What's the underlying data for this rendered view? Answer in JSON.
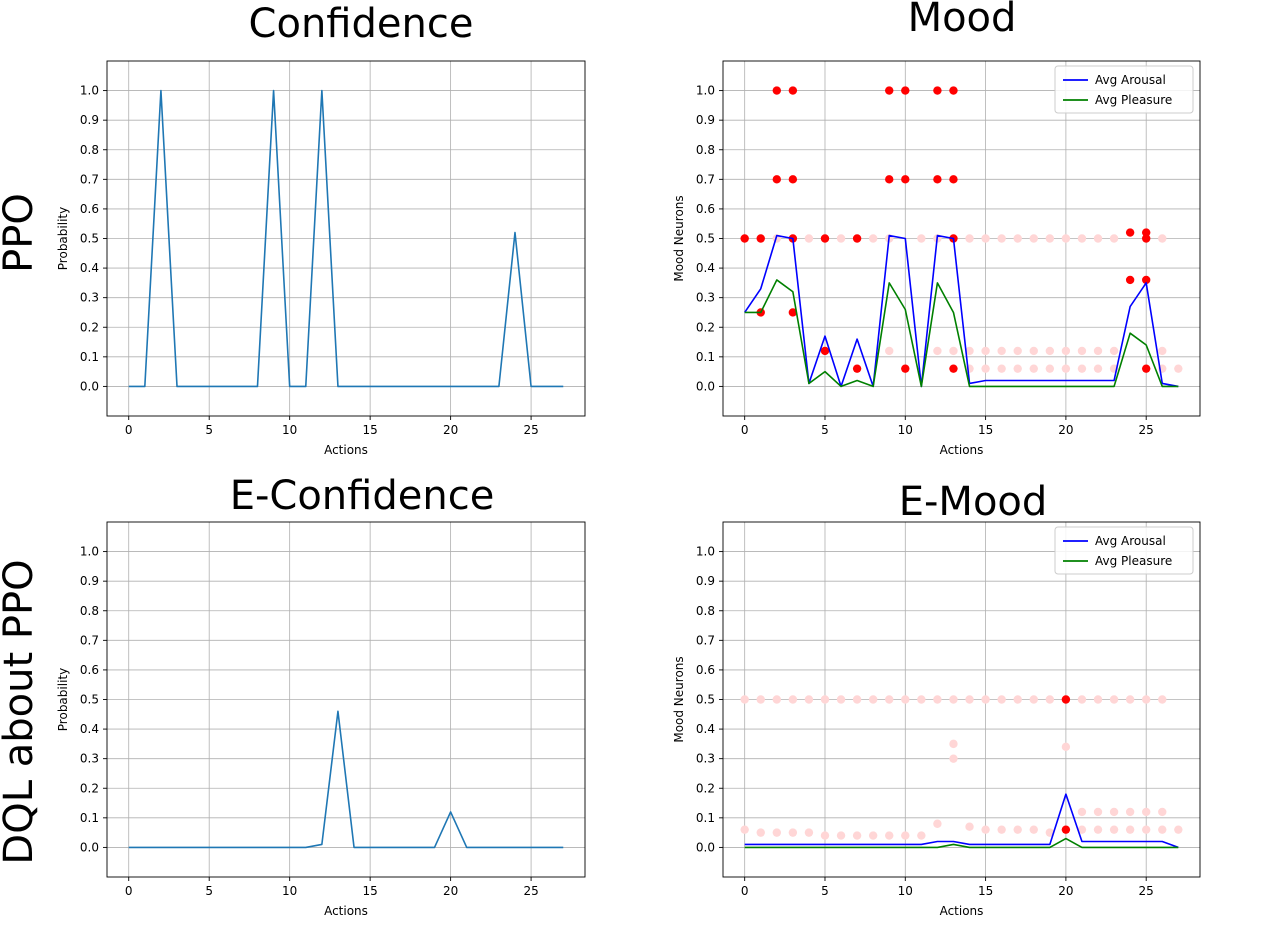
{
  "figure": {
    "row_labels": [
      "PPO",
      "DQL about PPO"
    ]
  },
  "chart_data": [
    {
      "id": "confidence",
      "type": "line",
      "title": "Confidence",
      "xlabel": "Actions",
      "ylabel": "Probability",
      "xlim": [
        -1.35,
        28.35
      ],
      "ylim": [
        -0.1,
        1.1
      ],
      "xticks": [
        0,
        5,
        10,
        15,
        20,
        25
      ],
      "yticks": [
        0.0,
        0.1,
        0.2,
        0.3,
        0.4,
        0.5,
        0.6,
        0.7,
        0.8,
        0.9,
        1.0
      ],
      "grid": true,
      "series": [
        {
          "name": "Confidence",
          "color": "#1f77b4",
          "values": [
            0,
            0,
            1,
            0,
            0,
            0,
            0,
            0,
            0,
            1,
            0,
            0,
            1,
            0,
            0,
            0,
            0,
            0,
            0,
            0,
            0,
            0,
            0,
            0,
            0.52,
            0,
            0,
            0
          ]
        }
      ]
    },
    {
      "id": "mood",
      "type": "line",
      "title": "Mood",
      "xlabel": "Actions",
      "ylabel": "Mood Neurons",
      "xlim": [
        -1.35,
        28.35
      ],
      "ylim": [
        -0.1,
        1.1
      ],
      "xticks": [
        0,
        5,
        10,
        15,
        20,
        25
      ],
      "yticks": [
        0.0,
        0.1,
        0.2,
        0.3,
        0.4,
        0.5,
        0.6,
        0.7,
        0.8,
        0.9,
        1.0
      ],
      "grid": true,
      "legend": "top-right",
      "series": [
        {
          "name": "Avg Arousal",
          "color": "#0000ff",
          "values": [
            0.25,
            0.33,
            0.51,
            0.5,
            0.01,
            0.17,
            0.0,
            0.16,
            0.0,
            0.51,
            0.5,
            0.0,
            0.51,
            0.5,
            0.01,
            0.02,
            0.02,
            0.02,
            0.02,
            0.02,
            0.02,
            0.02,
            0.02,
            0.02,
            0.27,
            0.35,
            0.01,
            0.0
          ]
        },
        {
          "name": "Avg Pleasure",
          "color": "#008000",
          "values": [
            0.25,
            0.25,
            0.36,
            0.32,
            0.01,
            0.05,
            0.0,
            0.02,
            0.0,
            0.35,
            0.26,
            0.0,
            0.35,
            0.25,
            0.0,
            0.0,
            0.0,
            0.0,
            0.0,
            0.0,
            0.0,
            0.0,
            0.0,
            0.0,
            0.18,
            0.14,
            0.0,
            0.0
          ]
        }
      ],
      "scatter_strong": {
        "color": "#ff0000",
        "points": [
          [
            0,
            0.5
          ],
          [
            1,
            0.5
          ],
          [
            1,
            0.25
          ],
          [
            2,
            1.0
          ],
          [
            2,
            0.7
          ],
          [
            3,
            1.0
          ],
          [
            3,
            0.7
          ],
          [
            3,
            0.5
          ],
          [
            3,
            0.25
          ],
          [
            5,
            0.5
          ],
          [
            5,
            0.12
          ],
          [
            7,
            0.5
          ],
          [
            7,
            0.06
          ],
          [
            9,
            1.0
          ],
          [
            9,
            0.7
          ],
          [
            10,
            1.0
          ],
          [
            10,
            0.7
          ],
          [
            10,
            0.06
          ],
          [
            12,
            1.0
          ],
          [
            12,
            0.7
          ],
          [
            13,
            1.0
          ],
          [
            13,
            0.7
          ],
          [
            13,
            0.5
          ],
          [
            13,
            0.06
          ],
          [
            24,
            0.52
          ],
          [
            24,
            0.36
          ],
          [
            25,
            0.52
          ],
          [
            25,
            0.5
          ],
          [
            25,
            0.36
          ],
          [
            25,
            0.06
          ]
        ]
      },
      "scatter_faint": {
        "color": "#ffd6d6",
        "points": [
          [
            2,
            0.5
          ],
          [
            4,
            0.5
          ],
          [
            6,
            0.5
          ],
          [
            8,
            0.5
          ],
          [
            9,
            0.5
          ],
          [
            11,
            0.5
          ],
          [
            12,
            0.5
          ],
          [
            14,
            0.5
          ],
          [
            15,
            0.5
          ],
          [
            16,
            0.5
          ],
          [
            17,
            0.5
          ],
          [
            18,
            0.5
          ],
          [
            19,
            0.5
          ],
          [
            20,
            0.5
          ],
          [
            21,
            0.5
          ],
          [
            22,
            0.5
          ],
          [
            23,
            0.5
          ],
          [
            26,
            0.5
          ],
          [
            9,
            0.12
          ],
          [
            12,
            0.12
          ],
          [
            13,
            0.12
          ],
          [
            14,
            0.12
          ],
          [
            15,
            0.12
          ],
          [
            16,
            0.12
          ],
          [
            17,
            0.12
          ],
          [
            18,
            0.12
          ],
          [
            19,
            0.12
          ],
          [
            20,
            0.12
          ],
          [
            21,
            0.12
          ],
          [
            22,
            0.12
          ],
          [
            23,
            0.12
          ],
          [
            26,
            0.12
          ],
          [
            14,
            0.06
          ],
          [
            15,
            0.06
          ],
          [
            16,
            0.06
          ],
          [
            17,
            0.06
          ],
          [
            18,
            0.06
          ],
          [
            19,
            0.06
          ],
          [
            20,
            0.06
          ],
          [
            21,
            0.06
          ],
          [
            22,
            0.06
          ],
          [
            23,
            0.06
          ],
          [
            26,
            0.06
          ],
          [
            27,
            0.06
          ]
        ]
      }
    },
    {
      "id": "e-confidence",
      "type": "line",
      "title": "E-Confidence",
      "xlabel": "Actions",
      "ylabel": "Probability",
      "xlim": [
        -1.35,
        28.35
      ],
      "ylim": [
        -0.1,
        1.1
      ],
      "xticks": [
        0,
        5,
        10,
        15,
        20,
        25
      ],
      "yticks": [
        0.0,
        0.1,
        0.2,
        0.3,
        0.4,
        0.5,
        0.6,
        0.7,
        0.8,
        0.9,
        1.0
      ],
      "grid": true,
      "series": [
        {
          "name": "E-Confidence",
          "color": "#1f77b4",
          "values": [
            0,
            0,
            0,
            0,
            0,
            0,
            0,
            0,
            0,
            0,
            0,
            0,
            0.01,
            0.46,
            0,
            0,
            0,
            0,
            0,
            0,
            0.12,
            0,
            0,
            0,
            0,
            0,
            0,
            0
          ]
        }
      ]
    },
    {
      "id": "e-mood",
      "type": "line",
      "title": "E-Mood",
      "xlabel": "Actions",
      "ylabel": "Mood Neurons",
      "xlim": [
        -1.35,
        28.35
      ],
      "ylim": [
        -0.1,
        1.1
      ],
      "xticks": [
        0,
        5,
        10,
        15,
        20,
        25
      ],
      "yticks": [
        0.0,
        0.1,
        0.2,
        0.3,
        0.4,
        0.5,
        0.6,
        0.7,
        0.8,
        0.9,
        1.0
      ],
      "grid": true,
      "legend": "top-right",
      "series": [
        {
          "name": "Avg Arousal",
          "color": "#0000ff",
          "values": [
            0.01,
            0.01,
            0.01,
            0.01,
            0.01,
            0.01,
            0.01,
            0.01,
            0.01,
            0.01,
            0.01,
            0.01,
            0.02,
            0.02,
            0.01,
            0.01,
            0.01,
            0.01,
            0.01,
            0.01,
            0.18,
            0.02,
            0.02,
            0.02,
            0.02,
            0.02,
            0.02,
            0.0
          ]
        },
        {
          "name": "Avg Pleasure",
          "color": "#008000",
          "values": [
            0.0,
            0.0,
            0.0,
            0.0,
            0.0,
            0.0,
            0.0,
            0.0,
            0.0,
            0.0,
            0.0,
            0.0,
            0.0,
            0.01,
            0.0,
            0.0,
            0.0,
            0.0,
            0.0,
            0.0,
            0.03,
            0.0,
            0.0,
            0.0,
            0.0,
            0.0,
            0.0,
            0.0
          ]
        }
      ],
      "scatter_strong": {
        "color": "#ff0000",
        "points": [
          [
            20,
            0.5
          ],
          [
            20,
            0.06
          ]
        ]
      },
      "scatter_faint": {
        "color": "#ffd6d6",
        "points": [
          [
            0,
            0.5
          ],
          [
            1,
            0.5
          ],
          [
            2,
            0.5
          ],
          [
            3,
            0.5
          ],
          [
            4,
            0.5
          ],
          [
            5,
            0.5
          ],
          [
            6,
            0.5
          ],
          [
            7,
            0.5
          ],
          [
            8,
            0.5
          ],
          [
            9,
            0.5
          ],
          [
            10,
            0.5
          ],
          [
            11,
            0.5
          ],
          [
            12,
            0.5
          ],
          [
            13,
            0.5
          ],
          [
            14,
            0.5
          ],
          [
            15,
            0.5
          ],
          [
            16,
            0.5
          ],
          [
            17,
            0.5
          ],
          [
            18,
            0.5
          ],
          [
            19,
            0.5
          ],
          [
            21,
            0.5
          ],
          [
            22,
            0.5
          ],
          [
            23,
            0.5
          ],
          [
            24,
            0.5
          ],
          [
            25,
            0.5
          ],
          [
            26,
            0.5
          ],
          [
            13,
            0.35
          ],
          [
            13,
            0.3
          ],
          [
            20,
            0.34
          ],
          [
            21,
            0.12
          ],
          [
            22,
            0.12
          ],
          [
            23,
            0.12
          ],
          [
            24,
            0.12
          ],
          [
            25,
            0.12
          ],
          [
            26,
            0.12
          ],
          [
            12,
            0.08
          ],
          [
            0,
            0.06
          ],
          [
            1,
            0.05
          ],
          [
            2,
            0.05
          ],
          [
            3,
            0.05
          ],
          [
            4,
            0.05
          ],
          [
            5,
            0.04
          ],
          [
            6,
            0.04
          ],
          [
            7,
            0.04
          ],
          [
            8,
            0.04
          ],
          [
            9,
            0.04
          ],
          [
            10,
            0.04
          ],
          [
            11,
            0.04
          ],
          [
            14,
            0.07
          ],
          [
            15,
            0.06
          ],
          [
            16,
            0.06
          ],
          [
            17,
            0.06
          ],
          [
            18,
            0.06
          ],
          [
            19,
            0.05
          ],
          [
            21,
            0.06
          ],
          [
            22,
            0.06
          ],
          [
            23,
            0.06
          ],
          [
            24,
            0.06
          ],
          [
            25,
            0.06
          ],
          [
            26,
            0.06
          ],
          [
            27,
            0.06
          ]
        ]
      }
    }
  ]
}
